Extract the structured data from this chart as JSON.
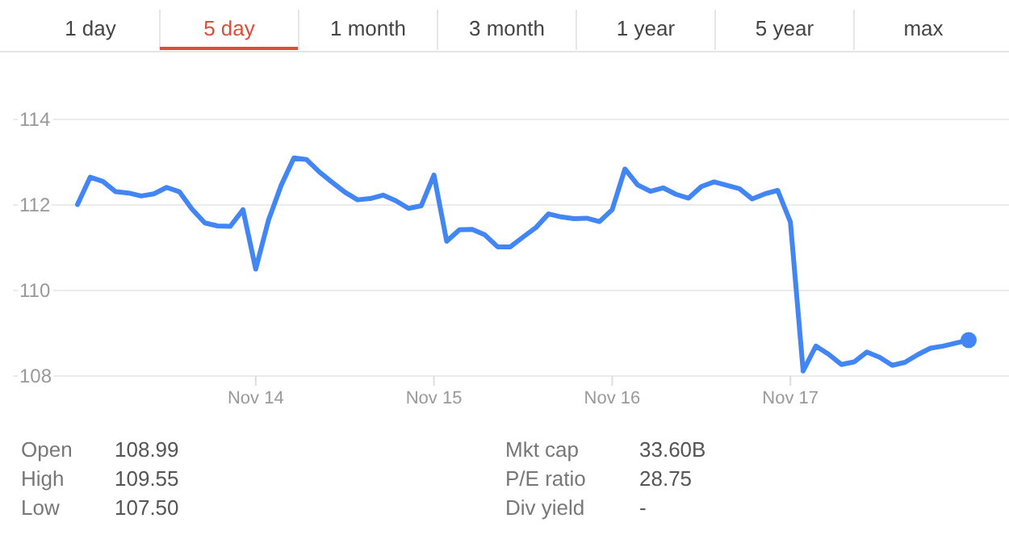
{
  "chart_data": [
    {
      "type": "other",
      "annotations": [
        "1 day",
        "5 day",
        "1 month",
        "3 month",
        "1 year",
        "5 year",
        "max"
      ]
    },
    {
      "type": "line",
      "grid": "y",
      "ylim": [
        108,
        114
      ],
      "yticks": [
        108,
        110,
        112,
        114
      ],
      "categories": [
        null,
        null,
        null,
        null,
        null,
        null,
        null,
        null,
        null,
        null,
        null,
        null,
        null,
        null,
        "Nov 14",
        null,
        null,
        null,
        null,
        null,
        null,
        null,
        null,
        null,
        null,
        null,
        null,
        null,
        "Nov 15",
        null,
        null,
        null,
        null,
        null,
        null,
        null,
        null,
        null,
        null,
        null,
        null,
        null,
        "Nov 16",
        null,
        null,
        null,
        null,
        null,
        null,
        null,
        null,
        null,
        null,
        null,
        null,
        null,
        "Nov 17",
        null,
        null,
        null,
        null,
        null,
        null,
        null,
        null,
        null,
        null,
        null,
        null,
        null,
        null
      ],
      "series": [
        {
          "color": "#4285f4",
          "marker": "none",
          "values": [
            112.01,
            112.65,
            112.55,
            112.31,
            112.28,
            112.21,
            112.26,
            112.41,
            112.31,
            111.9,
            111.58,
            111.51,
            111.5,
            111.89,
            110.5,
            111.64,
            112.46,
            113.1,
            113.06,
            112.77,
            112.53,
            112.3,
            112.12,
            112.15,
            112.23,
            112.1,
            111.92,
            111.98,
            112.7,
            111.15,
            111.42,
            111.43,
            111.3,
            111.02,
            111.02,
            111.25,
            111.47,
            111.79,
            111.72,
            111.68,
            111.69,
            111.61,
            111.89,
            112.84,
            112.47,
            112.32,
            112.4,
            112.25,
            112.16,
            112.43,
            112.54,
            112.46,
            112.38,
            112.14,
            112.26,
            112.34,
            111.6,
            108.12,
            108.7,
            108.51,
            108.27,
            108.33,
            108.56,
            108.44,
            108.25,
            108.32,
            108.5,
            108.65,
            108.7,
            108.77,
            108.84
          ]
        },
        {
          "type": "scatter",
          "color": "#4285f4",
          "marker": "circle",
          "values": [
            null,
            null,
            null,
            null,
            null,
            null,
            null,
            null,
            null,
            null,
            null,
            null,
            null,
            null,
            null,
            null,
            null,
            null,
            null,
            null,
            null,
            null,
            null,
            null,
            null,
            null,
            null,
            null,
            null,
            null,
            null,
            null,
            null,
            null,
            null,
            null,
            null,
            null,
            null,
            null,
            null,
            null,
            null,
            null,
            null,
            null,
            null,
            null,
            null,
            null,
            null,
            null,
            null,
            null,
            null,
            null,
            null,
            null,
            null,
            null,
            null,
            null,
            null,
            null,
            null,
            null,
            null,
            null,
            null,
            null,
            108.84
          ]
        }
      ]
    },
    {
      "type": "other",
      "annotations": [
        "Open",
        "108.99",
        "High",
        "109.55",
        "Low",
        "107.50",
        "Mkt cap",
        "33.60B",
        "P/E ratio",
        "28.75",
        "Div yield",
        "-"
      ]
    }
  ]
}
